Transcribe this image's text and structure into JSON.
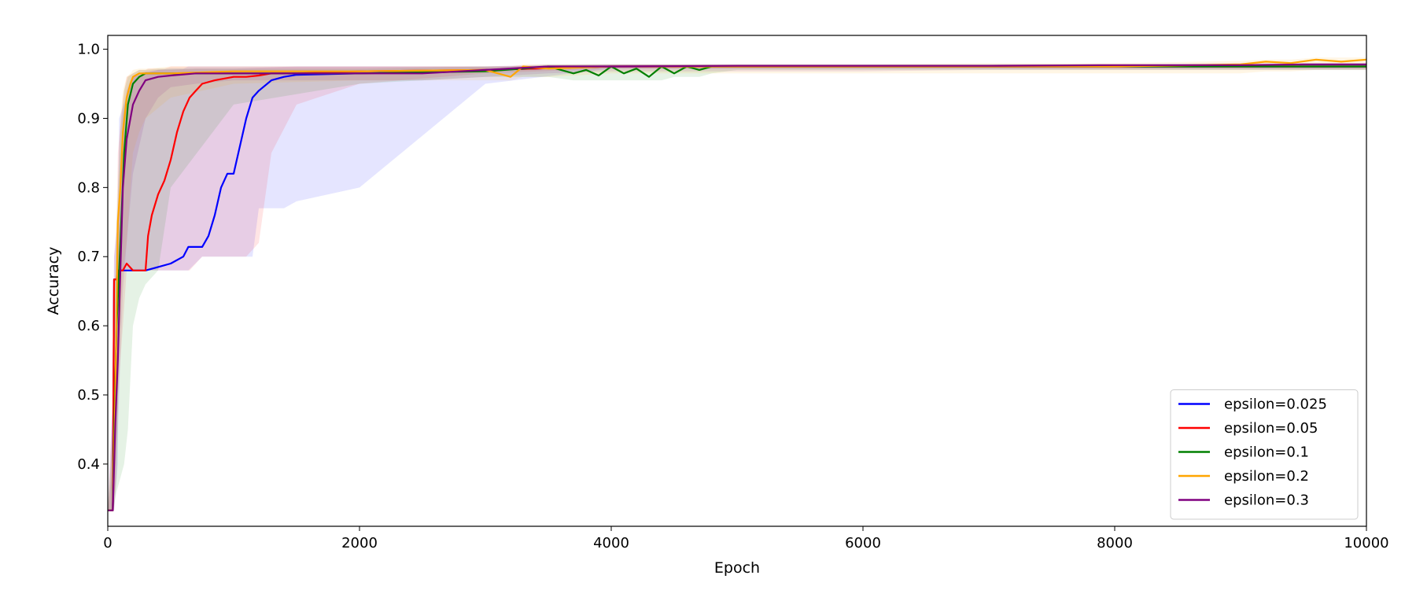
{
  "chart_data": {
    "type": "line",
    "title": "",
    "xlabel": "Epoch",
    "ylabel": "Accuracy",
    "xlim": [
      0,
      10000
    ],
    "ylim": [
      0.31,
      1.02
    ],
    "xticks": [
      0,
      2000,
      4000,
      6000,
      8000,
      10000
    ],
    "yticks": [
      0.4,
      0.5,
      0.6,
      0.7,
      0.8,
      0.9,
      1.0
    ],
    "xtick_labels": [
      "0",
      "2000",
      "4000",
      "6000",
      "8000",
      "10000"
    ],
    "ytick_labels": [
      "0.4",
      "0.5",
      "0.6",
      "0.7",
      "0.8",
      "0.9",
      "1.0"
    ],
    "grid": false,
    "legend_position": "lower-right",
    "series": [
      {
        "name": "epsilon=0.025",
        "color": "#0000ff",
        "x": [
          0,
          40,
          50,
          80,
          90,
          200,
          300,
          400,
          500,
          600,
          640,
          750,
          800,
          850,
          900,
          950,
          1000,
          1050,
          1100,
          1150,
          1200,
          1300,
          1400,
          1500,
          2000,
          3000,
          4000,
          6000,
          8000,
          10000
        ],
        "y": [
          0.333,
          0.333,
          0.667,
          0.667,
          0.68,
          0.68,
          0.68,
          0.685,
          0.69,
          0.7,
          0.714,
          0.714,
          0.73,
          0.76,
          0.8,
          0.82,
          0.82,
          0.86,
          0.9,
          0.93,
          0.94,
          0.955,
          0.96,
          0.963,
          0.965,
          0.97,
          0.975,
          0.975,
          0.975,
          0.975
        ],
        "band_upper": [
          0.333,
          0.5,
          0.7,
          0.75,
          0.9,
          0.96,
          0.965,
          0.97,
          0.972,
          0.972,
          0.975,
          0.975,
          0.975,
          0.975,
          0.975,
          0.975,
          0.975,
          0.975,
          0.975,
          0.975,
          0.975,
          0.975,
          0.975,
          0.975,
          0.975,
          0.975,
          0.978,
          0.978,
          0.978,
          0.978
        ],
        "band_lower": [
          0.333,
          0.333,
          0.333,
          0.4,
          0.68,
          0.68,
          0.68,
          0.68,
          0.68,
          0.68,
          0.68,
          0.7,
          0.7,
          0.7,
          0.7,
          0.7,
          0.7,
          0.7,
          0.7,
          0.7,
          0.77,
          0.77,
          0.77,
          0.78,
          0.8,
          0.95,
          0.972,
          0.972,
          0.972,
          0.972
        ]
      },
      {
        "name": "epsilon=0.05",
        "color": "#ff0000",
        "x": [
          0,
          40,
          50,
          70,
          80,
          120,
          150,
          200,
          250,
          300,
          320,
          350,
          400,
          450,
          500,
          550,
          600,
          650,
          700,
          750,
          850,
          1000,
          1100,
          1200,
          1300,
          1500,
          2000,
          3000,
          4000,
          6000,
          8000,
          10000
        ],
        "y": [
          0.333,
          0.333,
          0.667,
          0.667,
          0.68,
          0.68,
          0.69,
          0.68,
          0.68,
          0.68,
          0.73,
          0.76,
          0.79,
          0.81,
          0.84,
          0.88,
          0.91,
          0.93,
          0.94,
          0.95,
          0.955,
          0.96,
          0.96,
          0.962,
          0.965,
          0.965,
          0.968,
          0.97,
          0.975,
          0.975,
          0.975,
          0.975
        ],
        "band_upper": [
          0.333,
          0.5,
          0.7,
          0.75,
          0.85,
          0.93,
          0.96,
          0.965,
          0.97,
          0.97,
          0.972,
          0.972,
          0.972,
          0.972,
          0.975,
          0.975,
          0.975,
          0.975,
          0.975,
          0.975,
          0.975,
          0.975,
          0.975,
          0.975,
          0.975,
          0.975,
          0.975,
          0.975,
          0.978,
          0.978,
          0.978,
          0.978
        ],
        "band_lower": [
          0.333,
          0.333,
          0.333,
          0.38,
          0.5,
          0.6,
          0.68,
          0.68,
          0.68,
          0.68,
          0.68,
          0.68,
          0.68,
          0.68,
          0.68,
          0.68,
          0.68,
          0.68,
          0.69,
          0.7,
          0.7,
          0.7,
          0.7,
          0.72,
          0.85,
          0.92,
          0.95,
          0.965,
          0.972,
          0.972,
          0.972,
          0.972
        ]
      },
      {
        "name": "epsilon=0.1",
        "color": "#008000",
        "x": [
          0,
          40,
          50,
          70,
          100,
          130,
          160,
          200,
          250,
          300,
          400,
          500,
          1000,
          2000,
          3000,
          3300,
          3500,
          3700,
          3800,
          3900,
          4000,
          4100,
          4200,
          4300,
          4400,
          4500,
          4600,
          4700,
          4800,
          5000,
          6000,
          8000,
          10000
        ],
        "y": [
          0.333,
          0.333,
          0.45,
          0.6,
          0.72,
          0.85,
          0.92,
          0.95,
          0.96,
          0.965,
          0.965,
          0.965,
          0.965,
          0.965,
          0.968,
          0.972,
          0.975,
          0.965,
          0.97,
          0.962,
          0.975,
          0.965,
          0.972,
          0.96,
          0.975,
          0.965,
          0.975,
          0.97,
          0.975,
          0.975,
          0.975,
          0.975,
          0.975
        ],
        "band_upper": [
          0.333,
          0.45,
          0.6,
          0.75,
          0.88,
          0.94,
          0.96,
          0.965,
          0.97,
          0.97,
          0.972,
          0.972,
          0.972,
          0.972,
          0.975,
          0.975,
          0.978,
          0.978,
          0.978,
          0.978,
          0.978,
          0.978,
          0.978,
          0.978,
          0.978,
          0.978,
          0.978,
          0.978,
          0.978,
          0.978,
          0.978,
          0.978,
          0.978
        ],
        "band_lower": [
          0.333,
          0.333,
          0.34,
          0.36,
          0.38,
          0.4,
          0.45,
          0.6,
          0.64,
          0.66,
          0.68,
          0.8,
          0.92,
          0.95,
          0.96,
          0.96,
          0.96,
          0.955,
          0.955,
          0.955,
          0.955,
          0.955,
          0.955,
          0.955,
          0.955,
          0.96,
          0.96,
          0.96,
          0.965,
          0.97,
          0.97,
          0.97,
          0.97
        ]
      },
      {
        "name": "epsilon=0.2",
        "color": "#ffa500",
        "x": [
          0,
          40,
          60,
          80,
          100,
          120,
          150,
          180,
          200,
          250,
          300,
          500,
          1000,
          2000,
          3000,
          3200,
          3300,
          3500,
          4000,
          5000,
          6000,
          7000,
          8000,
          9000,
          9200,
          9400,
          9600,
          9800,
          10000
        ],
        "y": [
          0.333,
          0.333,
          0.5,
          0.75,
          0.8,
          0.88,
          0.93,
          0.95,
          0.96,
          0.965,
          0.965,
          0.965,
          0.968,
          0.968,
          0.97,
          0.96,
          0.975,
          0.972,
          0.975,
          0.975,
          0.975,
          0.975,
          0.975,
          0.978,
          0.982,
          0.98,
          0.985,
          0.982,
          0.985
        ],
        "band_upper": [
          0.333,
          0.45,
          0.65,
          0.8,
          0.9,
          0.94,
          0.96,
          0.965,
          0.97,
          0.972,
          0.972,
          0.975,
          0.975,
          0.975,
          0.975,
          0.975,
          0.978,
          0.978,
          0.978,
          0.978,
          0.978,
          0.98,
          0.98,
          0.983,
          0.985,
          0.985,
          0.988,
          0.988,
          0.988
        ],
        "band_lower": [
          0.333,
          0.333,
          0.36,
          0.5,
          0.6,
          0.68,
          0.72,
          0.8,
          0.85,
          0.88,
          0.9,
          0.93,
          0.95,
          0.955,
          0.955,
          0.955,
          0.96,
          0.96,
          0.965,
          0.965,
          0.965,
          0.965,
          0.965,
          0.965,
          0.968,
          0.968,
          0.97,
          0.97,
          0.97
        ]
      },
      {
        "name": "epsilon=0.3",
        "color": "#800080",
        "x": [
          0,
          40,
          60,
          80,
          100,
          120,
          150,
          180,
          200,
          250,
          300,
          400,
          500,
          700,
          1000,
          1500,
          2000,
          2500,
          3000,
          3500,
          4000,
          5000,
          6000,
          7000,
          8000,
          9000,
          9500,
          10000
        ],
        "y": [
          0.333,
          0.333,
          0.46,
          0.55,
          0.68,
          0.8,
          0.87,
          0.9,
          0.92,
          0.94,
          0.955,
          0.96,
          0.962,
          0.965,
          0.965,
          0.965,
          0.965,
          0.965,
          0.97,
          0.975,
          0.975,
          0.976,
          0.976,
          0.976,
          0.977,
          0.977,
          0.978,
          0.978
        ],
        "band_upper": [
          0.333,
          0.4,
          0.55,
          0.7,
          0.82,
          0.9,
          0.94,
          0.955,
          0.96,
          0.965,
          0.968,
          0.97,
          0.97,
          0.972,
          0.972,
          0.975,
          0.975,
          0.975,
          0.975,
          0.978,
          0.978,
          0.978,
          0.978,
          0.978,
          0.978,
          0.98,
          0.98,
          0.98
        ],
        "band_lower": [
          0.333,
          0.333,
          0.37,
          0.45,
          0.55,
          0.65,
          0.72,
          0.78,
          0.82,
          0.86,
          0.9,
          0.93,
          0.945,
          0.95,
          0.955,
          0.955,
          0.955,
          0.955,
          0.96,
          0.965,
          0.968,
          0.968,
          0.968,
          0.97,
          0.97,
          0.97,
          0.97,
          0.97
        ]
      }
    ]
  }
}
